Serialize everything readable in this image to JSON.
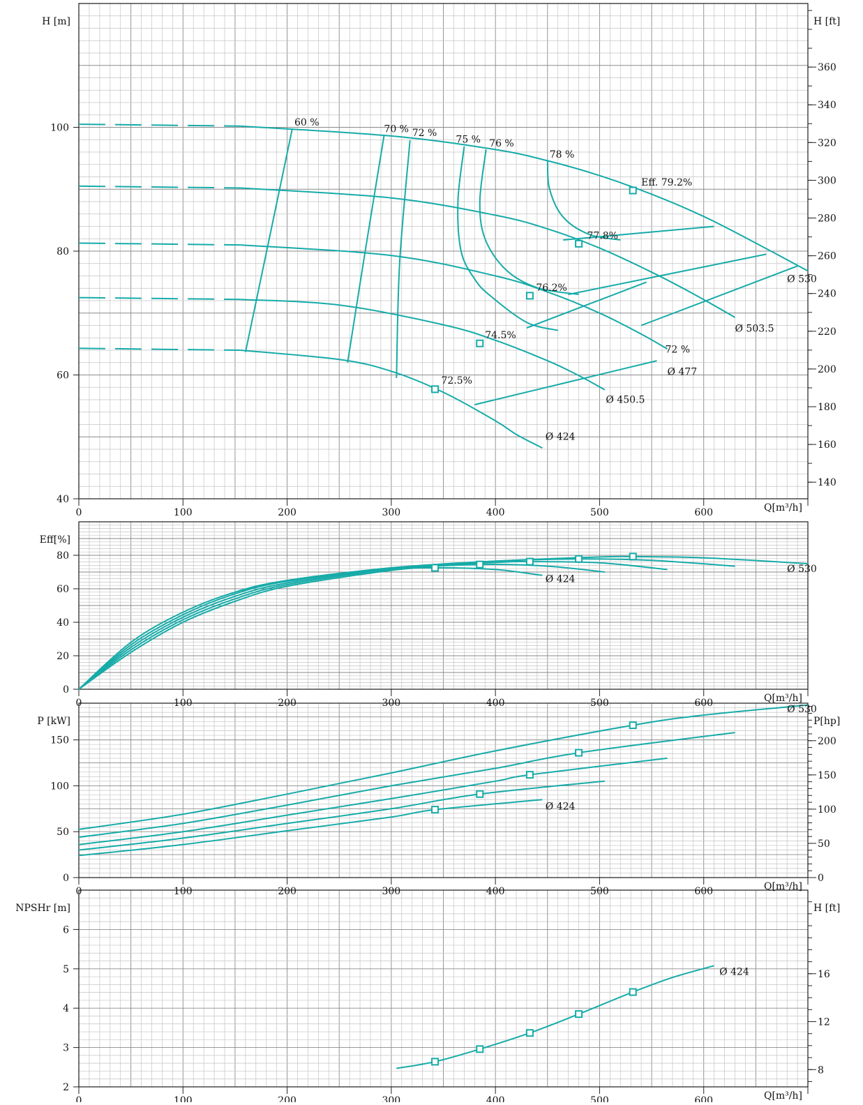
{
  "colors": {
    "curve": "#16aba8",
    "grid_major": "#8a8a8a",
    "grid_minor": "#c4c4c4"
  },
  "chart_data": [
    {
      "type": "line",
      "panel": "head",
      "xlabel": "Q[m³/h]",
      "ylabel": "H [m]",
      "y2label": "H [ft]",
      "xlim": [
        0,
        700
      ],
      "ylim": [
        40,
        120
      ],
      "y2lim": [
        131.2,
        393.7
      ],
      "xticks": [
        "0",
        "100",
        "200",
        "300",
        "400",
        "500",
        "600"
      ],
      "yticks": [
        "40",
        "60",
        "80",
        "100"
      ],
      "y2ticks": [
        "140",
        "160",
        "180",
        "200",
        "220",
        "240",
        "260",
        "280",
        "300",
        "320",
        "340",
        "360"
      ],
      "grid": true,
      "series": [
        {
          "name": "Ø 530",
          "dashed_to": 155,
          "x": [
            0,
            155,
            300,
            400,
            450,
            500,
            550,
            600,
            650,
            700
          ],
          "y": [
            100.5,
            100.2,
            98.6,
            96.4,
            94.6,
            92.2,
            89.2,
            85.6,
            81.3,
            76.8
          ],
          "bep": [
            532,
            89.8
          ]
        },
        {
          "name": "Ø 503.5",
          "dashed_to": 155,
          "x": [
            0,
            155,
            300,
            400,
            450,
            500,
            550,
            590,
            630
          ],
          "y": [
            90.5,
            90.2,
            88.6,
            85.8,
            83.6,
            80.5,
            76.6,
            73.1,
            69.3
          ],
          "bep": [
            480,
            81.2
          ]
        },
        {
          "name": "Ø 477",
          "dashed_to": 155,
          "x": [
            0,
            155,
            300,
            400,
            450,
            500,
            540,
            565
          ],
          "y": [
            81.3,
            81.0,
            79.3,
            76.0,
            73.4,
            70.0,
            66.6,
            64.2
          ],
          "bep": [
            433,
            72.8
          ]
        },
        {
          "name": "Ø 450.5",
          "dashed_to": 155,
          "x": [
            0,
            155,
            250,
            350,
            400,
            450,
            480,
            505
          ],
          "y": [
            72.5,
            72.2,
            71.3,
            68.1,
            65.6,
            62.3,
            59.9,
            57.6
          ],
          "bep": [
            385,
            65.1
          ]
        },
        {
          "name": "Ø 424",
          "dashed_to": 155,
          "x": [
            0,
            155,
            250,
            300,
            350,
            400,
            420,
            445
          ],
          "y": [
            64.3,
            64.0,
            62.5,
            60.6,
            57.2,
            52.6,
            50.4,
            48.2
          ],
          "bep": [
            342,
            57.7
          ]
        }
      ],
      "iso_efficiency": [
        {
          "label": "60 %",
          "x": [
            160,
            205
          ],
          "y": [
            63.7,
            99.8
          ]
        },
        {
          "label": "70 %",
          "x": [
            258,
            275,
            293
          ],
          "y": [
            62.0,
            80.0,
            98.6
          ]
        },
        {
          "label": "72 %",
          "x": [
            305,
            308,
            318
          ],
          "y": [
            59.5,
            78.0,
            97.9
          ]
        },
        {
          "label": "75 %",
          "x": [
            370,
            364,
            367,
            380,
            395,
            430,
            460
          ],
          "y": [
            96.9,
            88.0,
            80.0,
            75.5,
            72.8,
            68.5,
            67.2
          ]
        },
        {
          "label": "76 %",
          "x": [
            391,
            385,
            390,
            410,
            440,
            480
          ],
          "y": [
            96.4,
            88.0,
            82.0,
            77.0,
            74.1,
            73.0
          ]
        },
        {
          "label": "78 %",
          "x": [
            450,
            452,
            465,
            490,
            520
          ],
          "y": [
            94.5,
            90.0,
            85.5,
            82.7,
            81.8
          ]
        }
      ],
      "efficiency_boundaries": [
        {
          "x": [
            380,
            555
          ],
          "y": [
            55.2,
            62.3
          ]
        },
        {
          "x": [
            430,
            545
          ],
          "y": [
            67.6,
            75.0
          ]
        },
        {
          "x": [
            470,
            660
          ],
          "y": [
            73.0,
            79.5
          ]
        },
        {
          "x": [
            465,
            610
          ],
          "y": [
            81.8,
            84.0
          ]
        },
        {
          "x": [
            540,
            690
          ],
          "y": [
            68.0,
            77.6
          ]
        }
      ],
      "annotations": [
        {
          "text": "60 %",
          "x": 207,
          "y": 100.3
        },
        {
          "text": "70 %",
          "x": 293,
          "y": 99.2
        },
        {
          "text": "72 %",
          "x": 320,
          "y": 98.6
        },
        {
          "text": "75 %",
          "x": 362,
          "y": 97.5
        },
        {
          "text": "76 %",
          "x": 394,
          "y": 96.9
        },
        {
          "text": "78 %",
          "x": 452,
          "y": 95.1
        },
        {
          "text": "Eff. 79.2%",
          "x": 540,
          "y": 90.6
        },
        {
          "text": "77.8%",
          "x": 488,
          "y": 82.0
        },
        {
          "text": "76.2%",
          "x": 439,
          "y": 73.6
        },
        {
          "text": "74.5%",
          "x": 390,
          "y": 65.9
        },
        {
          "text": "72.5%",
          "x": 348,
          "y": 58.6
        },
        {
          "text": "72 %",
          "x": 563,
          "y": 63.6
        },
        {
          "text": "Ø 530",
          "x": 680,
          "y": 75.0
        },
        {
          "text": "Ø 503.5",
          "x": 630,
          "y": 67.0
        },
        {
          "text": "Ø 477",
          "x": 565,
          "y": 60.0
        },
        {
          "text": "Ø 450.5",
          "x": 506,
          "y": 55.5
        },
        {
          "text": "Ø 424",
          "x": 448,
          "y": 49.5
        }
      ]
    },
    {
      "type": "line",
      "panel": "efficiency",
      "xlabel": "Q[m³/h]",
      "ylabel": "Eff[%]",
      "xlim": [
        0,
        700
      ],
      "ylim": [
        0,
        100
      ],
      "xticks": [
        "0",
        "100",
        "200",
        "300",
        "400",
        "500",
        "600"
      ],
      "yticks": [
        "0",
        "20",
        "40",
        "60",
        "80"
      ],
      "grid": true,
      "series": [
        {
          "name": "Ø 530",
          "x": [
            0,
            50,
            100,
            150,
            200,
            300,
            400,
            500,
            532,
            600,
            700
          ],
          "y": [
            0,
            28,
            46,
            58,
            65,
            72.5,
            76.5,
            79,
            79.2,
            78.5,
            75
          ],
          "bep": [
            532,
            79.2
          ]
        },
        {
          "name": "Ø 503.5",
          "x": [
            0,
            50,
            100,
            150,
            200,
            300,
            400,
            480,
            550,
            630
          ],
          "y": [
            0,
            26.5,
            44.5,
            57,
            64.5,
            72.5,
            76.5,
            77.8,
            77,
            73.5
          ],
          "bep": [
            480,
            77.8
          ]
        },
        {
          "name": "Ø 477",
          "x": [
            0,
            50,
            100,
            150,
            200,
            300,
            400,
            433,
            500,
            565
          ],
          "y": [
            0,
            25,
            43,
            55.5,
            63.5,
            72,
            75.7,
            76.2,
            75.5,
            71.5
          ],
          "bep": [
            433,
            76.2
          ]
        },
        {
          "name": "Ø 450.5",
          "x": [
            0,
            50,
            100,
            150,
            200,
            300,
            385,
            450,
            505
          ],
          "y": [
            0,
            23.5,
            41.5,
            54,
            62.5,
            71.5,
            74.5,
            73.5,
            70
          ],
          "bep": [
            385,
            74.5
          ]
        },
        {
          "name": "Ø 424",
          "x": [
            0,
            50,
            100,
            150,
            200,
            300,
            342,
            400,
            445
          ],
          "y": [
            0,
            22,
            40,
            52.5,
            61.5,
            71,
            72.5,
            71.5,
            68
          ],
          "bep": [
            342,
            72.5
          ]
        }
      ],
      "annotations": [
        {
          "text": "Ø 424",
          "x": 448,
          "y": 64
        },
        {
          "text": "Ø 530",
          "x": 680,
          "y": 70
        }
      ]
    },
    {
      "type": "line",
      "panel": "power",
      "xlabel": "Q[m³/h]",
      "ylabel": "P [kW]",
      "y2label": "P[hp]",
      "xlim": [
        0,
        700
      ],
      "ylim": [
        0,
        190
      ],
      "y2lim": [
        0,
        254.8
      ],
      "xticks": [
        "0",
        "100",
        "200",
        "300",
        "400",
        "500",
        "600"
      ],
      "yticks": [
        "0",
        "50",
        "100",
        "150"
      ],
      "y2ticks": [
        "0",
        "50",
        "100",
        "150",
        "200"
      ],
      "grid": true,
      "series": [
        {
          "name": "Ø 530",
          "x": [
            0,
            100,
            200,
            300,
            400,
            532,
            600,
            700
          ],
          "y": [
            52.5,
            69,
            91,
            114,
            138,
            166,
            177,
            188
          ],
          "bep": [
            532,
            166
          ]
        },
        {
          "name": "Ø 503.5",
          "x": [
            0,
            100,
            200,
            300,
            400,
            480,
            630
          ],
          "y": [
            44,
            59,
            79,
            100,
            119,
            136,
            158
          ],
          "bep": [
            480,
            136
          ]
        },
        {
          "name": "Ø 477",
          "x": [
            0,
            100,
            200,
            300,
            400,
            433,
            565
          ],
          "y": [
            36,
            50,
            68,
            86,
            105,
            112,
            130
          ],
          "bep": [
            433,
            112
          ]
        },
        {
          "name": "Ø 450.5",
          "x": [
            0,
            100,
            200,
            300,
            385,
            505
          ],
          "y": [
            30,
            43,
            59,
            75,
            91,
            105
          ],
          "bep": [
            385,
            91
          ]
        },
        {
          "name": "Ø 424",
          "x": [
            0,
            100,
            200,
            300,
            342,
            445
          ],
          "y": [
            24,
            36,
            51,
            66,
            74,
            85
          ],
          "bep": [
            342,
            74
          ]
        }
      ],
      "annotations": [
        {
          "text": "Ø 530",
          "x": 680,
          "y": 180
        },
        {
          "text": "Ø 424",
          "x": 448,
          "y": 74
        }
      ]
    },
    {
      "type": "line",
      "panel": "npsh",
      "xlabel": "Q[m³/h]",
      "ylabel": "NPSHr [m]",
      "y2label": "H [ft]",
      "xlim": [
        0,
        700
      ],
      "ylim": [
        2,
        7
      ],
      "y2lim": [
        6.56,
        22.97
      ],
      "xticks": [
        "0",
        "100",
        "200",
        "300",
        "400",
        "500",
        "600"
      ],
      "yticks": [
        "2",
        "3",
        "4",
        "5",
        "6"
      ],
      "y2ticks": [
        "8",
        "12",
        "16"
      ],
      "grid": true,
      "series": [
        {
          "name": "Ø 424",
          "x": [
            305,
            342,
            385,
            433,
            480,
            532,
            570,
            610
          ],
          "y": [
            2.47,
            2.64,
            2.96,
            3.37,
            3.85,
            4.41,
            4.78,
            5.08
          ],
          "bep_points": [
            [
              342,
              2.64
            ],
            [
              385,
              2.96
            ],
            [
              433,
              3.37
            ],
            [
              480,
              3.85
            ],
            [
              532,
              4.41
            ]
          ]
        }
      ],
      "annotations": [
        {
          "text": "Ø 424",
          "x": 615,
          "y": 4.85
        }
      ]
    }
  ]
}
